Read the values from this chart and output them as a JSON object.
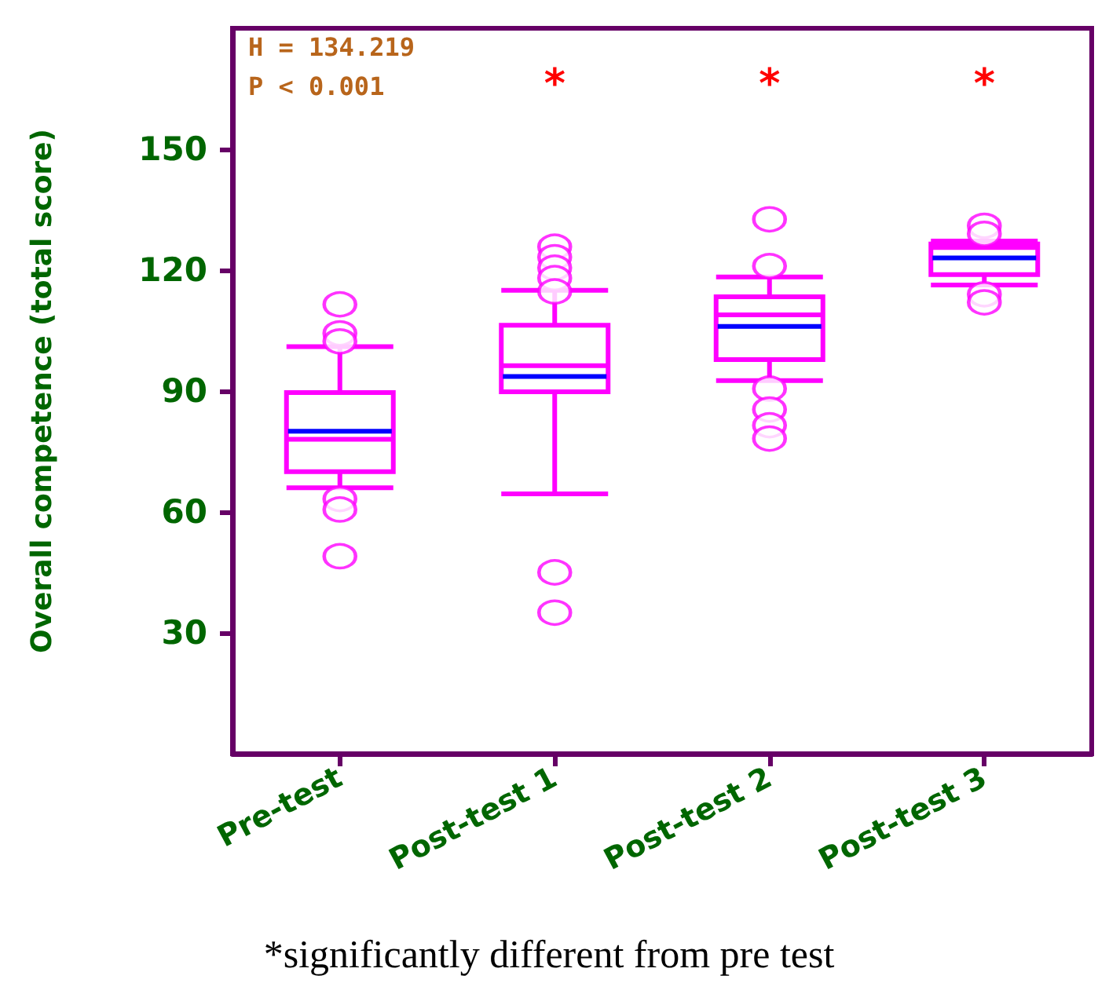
{
  "chart_data": {
    "type": "box",
    "ylabel": "Overall competence (total score)",
    "categories": [
      "Pre-test",
      "Post-test 1",
      "Post-test 2",
      "Post-test 3"
    ],
    "ylim": [
      0,
      180
    ],
    "yticks": [
      30,
      60,
      90,
      120,
      150
    ],
    "grid": false,
    "series": [
      {
        "color": "#ff00ff",
        "boxes": [
          {
            "low": 66,
            "q1": 70,
            "median": 78,
            "q3": 89.6,
            "high": 101,
            "mean": 80,
            "outliers": [
              111.5,
              104.3,
              102.3,
              63.2,
              60.6,
              49
            ]
          },
          {
            "low": 64.5,
            "q1": 89.8,
            "median": 96.3,
            "q3": 106.3,
            "high": 115,
            "mean": 93.6,
            "outliers": [
              125.8,
              123.2,
              120.6,
              118,
              114.7,
              45,
              35
            ]
          },
          {
            "low": 92.6,
            "q1": 97.8,
            "median": 108.9,
            "q3": 113.4,
            "high": 118.3,
            "mean": 106,
            "outliers": [
              132.6,
              121,
              90.6,
              85.4,
              81.5,
              78.2
            ]
          },
          {
            "low": 116.3,
            "q1": 118.9,
            "median": 125.6,
            "q3": 126.5,
            "high": 127.2,
            "mean": 123,
            "outliers": [
              131,
              129,
              114,
              112
            ]
          }
        ]
      }
    ],
    "annotations": [
      "H = 134.219",
      "P < 0.001",
      "*",
      "*",
      "*",
      "*significantly different from pre test"
    ]
  }
}
